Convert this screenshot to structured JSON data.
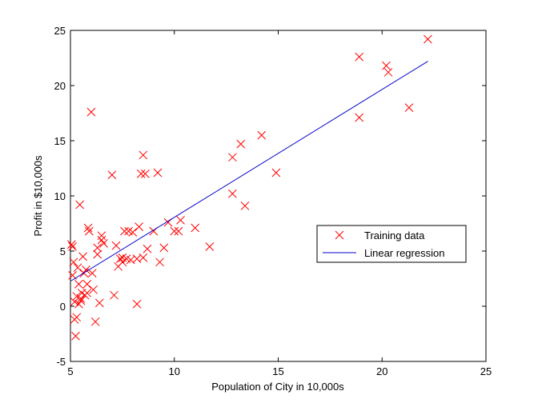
{
  "chart_data": {
    "type": "scatter",
    "title": "",
    "xlabel": "Population of City in 10,000s",
    "ylabel": "Profit in $10,000s",
    "xlim": [
      5,
      25
    ],
    "ylim": [
      -5,
      25
    ],
    "xticks": [
      5,
      10,
      15,
      20,
      25
    ],
    "yticks": [
      -5,
      0,
      5,
      10,
      15,
      20,
      25
    ],
    "grid": false,
    "legend_position": "center-right",
    "series": [
      {
        "name": "Training data",
        "kind": "scatter",
        "marker": "x",
        "color": "#ff0000",
        "x": [
          5.05,
          5.1,
          5.15,
          5.2,
          5.25,
          5.3,
          5.35,
          5.4,
          5.45,
          5.5,
          5.55,
          5.6,
          5.65,
          5.7,
          5.75,
          5.8,
          5.85,
          5.9,
          6.0,
          6.1,
          6.2,
          6.3,
          6.4,
          6.5,
          6.6,
          7.0,
          7.1,
          7.2,
          7.3,
          7.4,
          7.5,
          7.6,
          7.7,
          7.8,
          7.9,
          8.0,
          8.2,
          8.3,
          8.4,
          8.5,
          8.6,
          8.7,
          9.0,
          9.2,
          9.3,
          9.5,
          9.7,
          10.0,
          10.2,
          10.3,
          11.0,
          11.7,
          12.8,
          12.8,
          13.2,
          13.4,
          14.2,
          14.9,
          18.9,
          18.9,
          20.2,
          20.3,
          21.3,
          22.2,
          5.1,
          5.3,
          5.5,
          5.8,
          6.05,
          6.3,
          6.5,
          7.5,
          8.2,
          8.5,
          5.2,
          5.4
        ],
        "y": [
          5.6,
          5.4,
          4.0,
          0.4,
          -2.7,
          -1.0,
          3.5,
          2.0,
          9.2,
          0.5,
          1.2,
          4.5,
          3.0,
          1.0,
          3.3,
          2.0,
          7.1,
          6.8,
          17.6,
          1.5,
          -1.4,
          5.3,
          0.3,
          6.4,
          5.7,
          11.9,
          1.0,
          5.5,
          3.6,
          4.3,
          4.0,
          6.8,
          4.3,
          6.8,
          4.2,
          6.7,
          4.3,
          7.2,
          12.0,
          13.7,
          12.0,
          5.2,
          6.8,
          12.1,
          4.0,
          5.3,
          7.6,
          6.8,
          6.8,
          7.8,
          7.1,
          5.4,
          13.5,
          10.2,
          14.7,
          9.1,
          15.5,
          12.1,
          22.6,
          17.1,
          21.8,
          21.2,
          18.0,
          24.2,
          2.8,
          0.9,
          0.7,
          1.2,
          3.0,
          4.7,
          6.0,
          4.4,
          0.2,
          4.4,
          -1.2,
          0.2
        ]
      },
      {
        "name": "Linear regression",
        "kind": "line",
        "color": "#0000cc",
        "x": [
          5.0269,
          22.203
        ],
        "y": [
          2.3,
          22.2
        ]
      }
    ]
  }
}
